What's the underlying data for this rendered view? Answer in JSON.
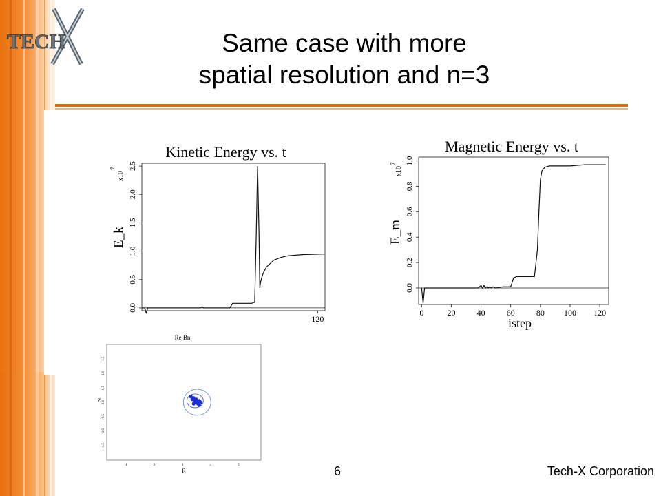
{
  "slide": {
    "title_line1": "Same case with more",
    "title_line2": "spatial resolution and n=3",
    "page_number": "6",
    "company": "Tech-X Corporation",
    "logo_text": "TECH",
    "accent_color": "#e36c0a"
  },
  "chart_data": [
    {
      "type": "line",
      "title": "Kinetic Energy vs. t",
      "ylabel": "E_k",
      "y_exponent": "x10",
      "y_exponent_power": "7",
      "ytick_labels": [
        "0.0",
        "0.5",
        "1.0",
        "1.5",
        "2.0",
        "2.5"
      ],
      "xtick_labels": [
        "120"
      ],
      "xlim": [
        0,
        125
      ],
      "ylim": [
        -0.05,
        2.55
      ],
      "series": [
        {
          "x": [
            0,
            2,
            3,
            4,
            6,
            10,
            20,
            30,
            40,
            41,
            42,
            44,
            60,
            62,
            64,
            75,
            77,
            78,
            79,
            80,
            80.5,
            81,
            82,
            83,
            85,
            90,
            95,
            100,
            110,
            125
          ],
          "y": [
            0,
            0,
            -0.1,
            0,
            0,
            0,
            0,
            0,
            0,
            0.02,
            0,
            0,
            0,
            0.08,
            0.08,
            0.08,
            0.1,
            1.2,
            2.5,
            1.3,
            0.35,
            0.45,
            0.55,
            0.62,
            0.72,
            0.84,
            0.89,
            0.92,
            0.94,
            0.95
          ]
        }
      ]
    },
    {
      "type": "line",
      "title": "Magnetic Energy vs. t",
      "xlabel": "istep",
      "ylabel": "E_m",
      "y_exponent": "x10",
      "y_exponent_power": "7",
      "ytick_labels": [
        "0.0",
        "0.2",
        "0.4",
        "0.6",
        "0.8",
        "1.0"
      ],
      "xtick_labels": [
        "0",
        "20",
        "40",
        "60",
        "80",
        "100",
        "120"
      ],
      "xlim": [
        -2,
        126
      ],
      "ylim": [
        -0.13,
        1.03
      ],
      "series": [
        {
          "x": [
            0,
            1,
            2,
            3,
            10,
            20,
            30,
            38,
            40,
            41,
            42,
            43,
            44,
            45,
            46,
            47,
            48,
            50,
            55,
            60,
            62,
            64,
            70,
            76,
            78,
            79,
            80,
            81,
            83,
            86,
            90,
            100,
            110,
            124
          ],
          "y": [
            0,
            -0.12,
            0,
            0,
            0,
            0,
            0,
            0,
            0.02,
            0,
            0.02,
            0,
            0.01,
            0,
            0.01,
            0,
            0.01,
            0,
            0.01,
            0.01,
            0.08,
            0.09,
            0.09,
            0.09,
            0.3,
            0.6,
            0.85,
            0.92,
            0.95,
            0.96,
            0.96,
            0.96,
            0.97,
            0.97
          ]
        }
      ]
    },
    {
      "type": "scatter",
      "title": "Re Bn",
      "xlabel": "R",
      "ylabel": "Z",
      "xtick_labels": [
        "1",
        "2",
        "3",
        "4",
        "5"
      ],
      "ytick_labels": [
        "1.5",
        "1.0",
        "0.5",
        "0.0",
        "-0.5",
        "-1.0",
        "-1.5"
      ],
      "xlim": [
        0.3,
        5.8
      ],
      "ylim": [
        -2.0,
        2.0
      ],
      "series": [
        {
          "x": [
            3.3,
            3.35,
            3.4,
            3.45,
            3.5,
            3.55,
            3.6,
            3.65,
            3.4,
            3.5,
            3.6,
            3.45,
            3.55
          ],
          "y": [
            0.2,
            0.1,
            0.15,
            0.05,
            0.0,
            -0.05,
            0.05,
            0.0,
            -0.05,
            0.1,
            -0.1,
            0.0,
            0.05
          ]
        }
      ]
    }
  ]
}
